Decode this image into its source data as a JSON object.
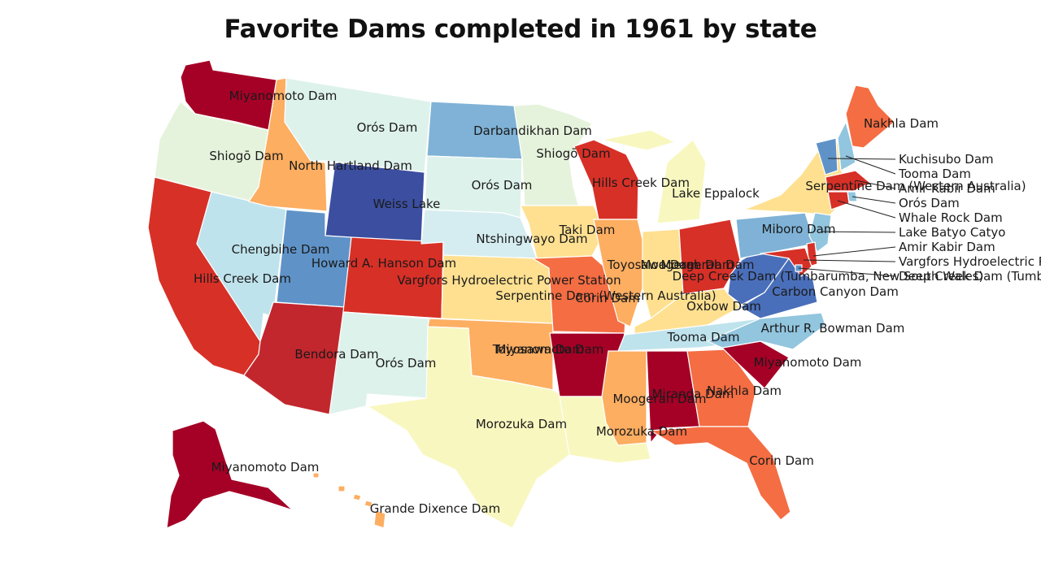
{
  "title": "Favorite Dams completed in 1961 by state",
  "palette": {
    "lvl1": "#a50026",
    "lvl2": "#c1272d",
    "lvl3": "#d73027",
    "lvl4": "#f46d43",
    "lvl5": "#fdae61",
    "lvl6": "#fee090",
    "lvl7": "#f8f7bf",
    "lvl8": "#e6f3dc",
    "lvl9": "#def2ec",
    "lvl10": "#d5edf0",
    "lvl11": "#bfe3ec",
    "lvl12": "#92c5de",
    "lvl13": "#7fb2d6",
    "lvl14": "#5f93c8",
    "lvl15": "#4a6fba",
    "lvl16": "#3b4ea0"
  },
  "states": [
    {
      "abbr": "WA",
      "dam": "Miyanomoto Dam"
    },
    {
      "abbr": "OR",
      "dam": "Shiogō Dam"
    },
    {
      "abbr": "CA",
      "dam": "Hills Creek Dam"
    },
    {
      "abbr": "NV",
      "dam": "Chengbihe Dam"
    },
    {
      "abbr": "ID",
      "dam": "North Hartland Dam"
    },
    {
      "abbr": "MT",
      "dam": "Orós Dam"
    },
    {
      "abbr": "WY",
      "dam": "Weiss Lake"
    },
    {
      "abbr": "UT",
      "dam": "Howard A. Hanson Dam"
    },
    {
      "abbr": "AZ",
      "dam": "Bendora Dam"
    },
    {
      "abbr": "CO",
      "dam": "Vargfors Hydroelectric Power Station"
    },
    {
      "abbr": "NM",
      "dam": "Orós Dam"
    },
    {
      "abbr": "ND",
      "dam": "Darbandikhan Dam"
    },
    {
      "abbr": "SD",
      "dam": "Orós Dam"
    },
    {
      "abbr": "NE",
      "dam": "Ntshingwayo Dam"
    },
    {
      "abbr": "KS",
      "dam": "Serpentine Dam (Western Australia)"
    },
    {
      "abbr": "OK",
      "dam": "Toyosawa Dam"
    },
    {
      "abbr": "TX",
      "dam": "Morozuka Dam"
    },
    {
      "abbr": "MN",
      "dam": "Shiogō Dam"
    },
    {
      "abbr": "IA",
      "dam": "Taki Dam"
    },
    {
      "abbr": "MO",
      "dam": "Corin Dam"
    },
    {
      "abbr": "AR",
      "dam": "Miyanomoto Dam"
    },
    {
      "abbr": "LA",
      "dam": "Morozuka Dam"
    },
    {
      "abbr": "WI",
      "dam": "Hills Creek Dam"
    },
    {
      "abbr": "IL",
      "dam": "Toyosawa Dam"
    },
    {
      "abbr": "MI",
      "dam": "Lake Eppalock"
    },
    {
      "abbr": "IN",
      "dam": "Moogerah Dam"
    },
    {
      "abbr": "OH",
      "dam": "Moogerah Dam"
    },
    {
      "abbr": "KY",
      "dam": "Oxbow Dam"
    },
    {
      "abbr": "TN",
      "dam": "Tooma Dam"
    },
    {
      "abbr": "MS",
      "dam": "Moogerah Dam"
    },
    {
      "abbr": "AL",
      "dam": "Miranda Dam"
    },
    {
      "abbr": "GA",
      "dam": "Nakhla Dam"
    },
    {
      "abbr": "FL",
      "dam": "Corin Dam"
    },
    {
      "abbr": "SC",
      "dam": "Miyanomoto Dam"
    },
    {
      "abbr": "NC",
      "dam": "Arthur R. Bowman Dam"
    },
    {
      "abbr": "VA",
      "dam": "Carbon Canyon Dam"
    },
    {
      "abbr": "WV",
      "dam": "Deep Creek Dam (Tumbarumba, New South Wales)"
    },
    {
      "abbr": "PA",
      "dam": "Miboro Dam"
    },
    {
      "abbr": "NY",
      "dam": "Serpentine Dam (Western Australia)"
    },
    {
      "abbr": "ME",
      "dam": "Nakhla Dam"
    },
    {
      "abbr": "VT",
      "dam": "Kuchisubo Dam"
    },
    {
      "abbr": "NH",
      "dam": "Tooma Dam"
    },
    {
      "abbr": "MA",
      "dam": "Amir Kabir Dam"
    },
    {
      "abbr": "RI",
      "dam": "Orós Dam"
    },
    {
      "abbr": "CT",
      "dam": "Whale Rock Dam"
    },
    {
      "abbr": "NJ",
      "dam": "Lake Batyo Catyo"
    },
    {
      "abbr": "DE",
      "dam": "Amir Kabir Dam"
    },
    {
      "abbr": "MD",
      "dam": "Vargfors Hydroelectric Power Station"
    },
    {
      "abbr": "DC",
      "dam": "Deep Creek Dam (Tumbarumba, New South Wales)"
    },
    {
      "abbr": "AK",
      "dam": "Miyanomoto Dam"
    },
    {
      "abbr": "HI",
      "dam": "Grande Dixence Dam"
    }
  ]
}
